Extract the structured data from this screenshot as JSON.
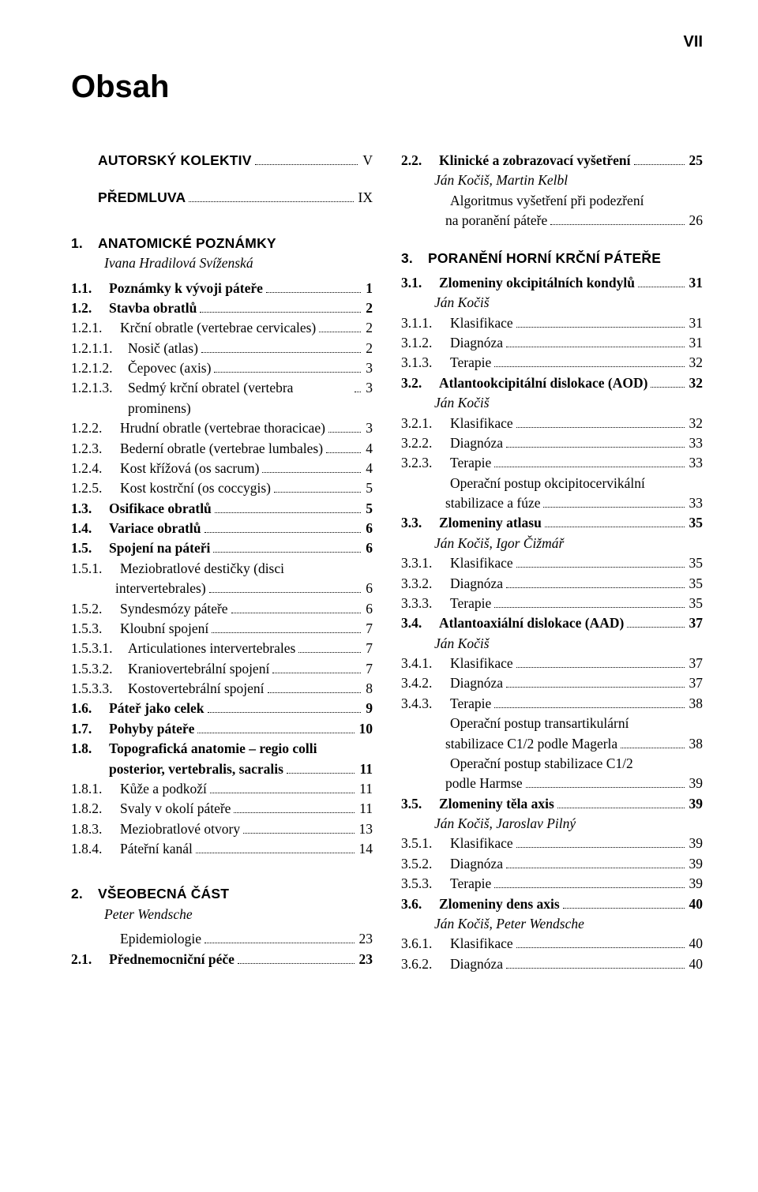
{
  "page_number_label": "VII",
  "title": "Obsah",
  "colors": {
    "text": "#000000",
    "background": "#ffffff"
  },
  "typography": {
    "body_family": "Minion Pro / Times",
    "heading_family": "Myriad Pro / Helvetica",
    "title_size_pt": 30,
    "body_size_pt": 13
  },
  "left": [
    {
      "type": "chapter",
      "num": "",
      "txt": "AUTORSKÝ KOLEKTIV",
      "pg": "V",
      "indent": 0
    },
    {
      "type": "spacer-md"
    },
    {
      "type": "chapter",
      "num": "",
      "txt": "PŘEDMLUVA",
      "pg": "IX",
      "indent": 0
    },
    {
      "type": "spacer-lg"
    },
    {
      "type": "chapter",
      "num": "1.",
      "txt": "ANATOMICKÉ POZNÁMKY",
      "pg": "",
      "indent": 0,
      "noleader": true
    },
    {
      "type": "author",
      "txt": "Ivana Hradilová Svíženská"
    },
    {
      "type": "spacer-sm"
    },
    {
      "type": "line",
      "num": "1.1.",
      "txt": "Poznámky k vývoji páteře",
      "pg": "1",
      "indent": 1,
      "bold": true
    },
    {
      "type": "line",
      "num": "1.2.",
      "txt": "Stavba obratlů",
      "pg": "2",
      "indent": 1,
      "bold": true
    },
    {
      "type": "line",
      "num": "1.2.1.",
      "txt": "Krční obratle (vertebrae cervicales)",
      "pg": "2",
      "indent": 2
    },
    {
      "type": "line",
      "num": "1.2.1.1.",
      "txt": "Nosič (atlas)",
      "pg": "2",
      "indent": 3
    },
    {
      "type": "line",
      "num": "1.2.1.2.",
      "txt": "Čepovec (axis)",
      "pg": "3",
      "indent": 3
    },
    {
      "type": "line",
      "num": "1.2.1.3.",
      "txt": "Sedmý krční obratel (vertebra prominens)",
      "pg": "3",
      "indent": 3
    },
    {
      "type": "line",
      "num": "1.2.2.",
      "txt": "Hrudní obratle (vertebrae thoracicae)",
      "pg": "3",
      "indent": 2
    },
    {
      "type": "line",
      "num": "1.2.3.",
      "txt": "Bederní obratle (vertebrae lumbales)",
      "pg": "4",
      "indent": 2
    },
    {
      "type": "line",
      "num": "1.2.4.",
      "txt": "Kost křížová (os sacrum)",
      "pg": "4",
      "indent": 2
    },
    {
      "type": "line",
      "num": "1.2.5.",
      "txt": "Kost kostrční (os coccygis)",
      "pg": "5",
      "indent": 2
    },
    {
      "type": "line",
      "num": "1.3.",
      "txt": "Osifikace obratlů",
      "pg": "5",
      "indent": 1,
      "bold": true
    },
    {
      "type": "line",
      "num": "1.4.",
      "txt": "Variace obratlů",
      "pg": "6",
      "indent": 1,
      "bold": true
    },
    {
      "type": "line",
      "num": "1.5.",
      "txt": "Spojení na páteři",
      "pg": "6",
      "indent": 1,
      "bold": true
    },
    {
      "type": "line",
      "num": "1.5.1.",
      "txt": "Meziobratlové destičky (disci",
      "pg": "",
      "indent": 2,
      "noleader": true
    },
    {
      "type": "hang",
      "txt": "intervertebrales)",
      "pg": "6"
    },
    {
      "type": "line",
      "num": "1.5.2.",
      "txt": "Syndesmózy páteře",
      "pg": "6",
      "indent": 2
    },
    {
      "type": "line",
      "num": "1.5.3.",
      "txt": "Kloubní spojení",
      "pg": "7",
      "indent": 2
    },
    {
      "type": "line",
      "num": "1.5.3.1.",
      "txt": "Articulationes intervertebrales",
      "pg": "7",
      "indent": 3
    },
    {
      "type": "line",
      "num": "1.5.3.2.",
      "txt": "Kraniovertebrální spojení",
      "pg": "7",
      "indent": 3
    },
    {
      "type": "line",
      "num": "1.5.3.3.",
      "txt": "Kostovertebrální spojení",
      "pg": "8",
      "indent": 3
    },
    {
      "type": "line",
      "num": "1.6.",
      "txt": "Páteř jako celek",
      "pg": "9",
      "indent": 1,
      "bold": true
    },
    {
      "type": "line",
      "num": "1.7.",
      "txt": "Pohyby páteře",
      "pg": "10",
      "indent": 1,
      "bold": true
    },
    {
      "type": "line",
      "num": "1.8.",
      "txt": "Topografická anatomie – regio colli",
      "pg": "",
      "indent": 1,
      "bold": true,
      "noleader": true
    },
    {
      "type": "wrap",
      "txt_a": "posterior, vertebralis, sacralis",
      "pg": "11"
    },
    {
      "type": "line",
      "num": "1.8.1.",
      "txt": "Kůže a podkoží",
      "pg": "11",
      "indent": 2
    },
    {
      "type": "line",
      "num": "1.8.2.",
      "txt": "Svaly v okolí páteře",
      "pg": "11",
      "indent": 2
    },
    {
      "type": "line",
      "num": "1.8.3.",
      "txt": "Meziobratlové otvory",
      "pg": "13",
      "indent": 2
    },
    {
      "type": "line",
      "num": "1.8.4.",
      "txt": "Páteřní kanál",
      "pg": "14",
      "indent": 2
    },
    {
      "type": "spacer-lg"
    },
    {
      "type": "chapter",
      "num": "2.",
      "txt": "VŠEOBECNÁ ČÁST",
      "pg": "",
      "indent": 0,
      "noleader": true
    },
    {
      "type": "author",
      "txt": "Peter Wendsche"
    },
    {
      "type": "spacer-sm"
    },
    {
      "type": "line",
      "num": "",
      "txt": "Epidemiologie",
      "pg": "23",
      "indent": 2
    },
    {
      "type": "line",
      "num": "2.1.",
      "txt": "Přednemocniční péče",
      "pg": "23",
      "indent": 1,
      "bold": true
    }
  ],
  "right": [
    {
      "type": "line",
      "num": "2.2.",
      "txt": "Klinické a zobrazovací vyšetření",
      "pg": "25",
      "indent": 1,
      "bold": true
    },
    {
      "type": "author",
      "txt": "Ján Kočiš, Martin Kelbl"
    },
    {
      "type": "line",
      "num": "",
      "txt": "Algoritmus vyšetření při podezření",
      "pg": "",
      "indent": 2,
      "noleader": true
    },
    {
      "type": "hang",
      "txt": "na poranění páteře",
      "pg": "26"
    },
    {
      "type": "spacer-md"
    },
    {
      "type": "chapter",
      "num": "3.",
      "txt": "PORANĚNÍ HORNÍ KRČNÍ PÁTEŘE",
      "pg": "",
      "indent": 0,
      "noleader": true
    },
    {
      "type": "spacer-sm"
    },
    {
      "type": "line",
      "num": "3.1.",
      "txt": "Zlomeniny okcipitálních kondylů",
      "pg": "31",
      "indent": 1,
      "bold": true
    },
    {
      "type": "author",
      "txt": "Ján Kočiš"
    },
    {
      "type": "line",
      "num": "3.1.1.",
      "txt": "Klasifikace",
      "pg": "31",
      "indent": 2
    },
    {
      "type": "line",
      "num": "3.1.2.",
      "txt": "Diagnóza",
      "pg": "31",
      "indent": 2
    },
    {
      "type": "line",
      "num": "3.1.3.",
      "txt": "Terapie",
      "pg": "32",
      "indent": 2
    },
    {
      "type": "line",
      "num": "3.2.",
      "txt": "Atlantookcipitální dislokace (AOD)",
      "pg": "32",
      "indent": 1,
      "bold": true
    },
    {
      "type": "author",
      "txt": "Ján Kočiš"
    },
    {
      "type": "line",
      "num": "3.2.1.",
      "txt": "Klasifikace",
      "pg": "32",
      "indent": 2
    },
    {
      "type": "line",
      "num": "3.2.2.",
      "txt": "Diagnóza",
      "pg": "33",
      "indent": 2
    },
    {
      "type": "line",
      "num": "3.2.3.",
      "txt": "Terapie",
      "pg": "33",
      "indent": 2
    },
    {
      "type": "line",
      "num": "",
      "txt": "Operační postup okcipitocervikální",
      "pg": "",
      "indent": 2,
      "noleader": true
    },
    {
      "type": "hang",
      "txt": "stabilizace a fúze",
      "pg": "33"
    },
    {
      "type": "line",
      "num": "3.3.",
      "txt": "Zlomeniny atlasu",
      "pg": "35",
      "indent": 1,
      "bold": true
    },
    {
      "type": "author",
      "txt": "Ján Kočiš, Igor Čižmář"
    },
    {
      "type": "line",
      "num": "3.3.1.",
      "txt": "Klasifikace",
      "pg": "35",
      "indent": 2
    },
    {
      "type": "line",
      "num": "3.3.2.",
      "txt": "Diagnóza",
      "pg": "35",
      "indent": 2
    },
    {
      "type": "line",
      "num": "3.3.3.",
      "txt": "Terapie",
      "pg": "35",
      "indent": 2
    },
    {
      "type": "line",
      "num": "3.4.",
      "txt": "Atlantoaxiální dislokace (AAD)",
      "pg": "37",
      "indent": 1,
      "bold": true
    },
    {
      "type": "author",
      "txt": "Ján Kočiš"
    },
    {
      "type": "line",
      "num": "3.4.1.",
      "txt": "Klasifikace",
      "pg": "37",
      "indent": 2
    },
    {
      "type": "line",
      "num": "3.4.2.",
      "txt": "Diagnóza",
      "pg": "37",
      "indent": 2
    },
    {
      "type": "line",
      "num": "3.4.3.",
      "txt": "Terapie",
      "pg": "38",
      "indent": 2
    },
    {
      "type": "line",
      "num": "",
      "txt": "Operační postup transartikulární",
      "pg": "",
      "indent": 2,
      "noleader": true
    },
    {
      "type": "hang",
      "txt": "stabilizace C1/2 podle Magerla",
      "pg": "38"
    },
    {
      "type": "line",
      "num": "",
      "txt": "Operační postup stabilizace C1/2",
      "pg": "",
      "indent": 2,
      "noleader": true
    },
    {
      "type": "hang",
      "txt": "podle Harmse",
      "pg": "39"
    },
    {
      "type": "line",
      "num": "3.5.",
      "txt": "Zlomeniny těla axis",
      "pg": "39",
      "indent": 1,
      "bold": true
    },
    {
      "type": "author",
      "txt": "Ján Kočiš, Jaroslav Pilný"
    },
    {
      "type": "line",
      "num": "3.5.1.",
      "txt": "Klasifikace",
      "pg": "39",
      "indent": 2
    },
    {
      "type": "line",
      "num": "3.5.2.",
      "txt": "Diagnóza",
      "pg": "39",
      "indent": 2
    },
    {
      "type": "line",
      "num": "3.5.3.",
      "txt": "Terapie",
      "pg": "39",
      "indent": 2
    },
    {
      "type": "line",
      "num": "3.6.",
      "txt": "Zlomeniny dens axis",
      "pg": "40",
      "indent": 1,
      "bold": true
    },
    {
      "type": "author",
      "txt": "Ján Kočiš, Peter Wendsche"
    },
    {
      "type": "line",
      "num": "3.6.1.",
      "txt": "Klasifikace",
      "pg": "40",
      "indent": 2
    },
    {
      "type": "line",
      "num": "3.6.2.",
      "txt": "Diagnóza",
      "pg": "40",
      "indent": 2
    }
  ]
}
